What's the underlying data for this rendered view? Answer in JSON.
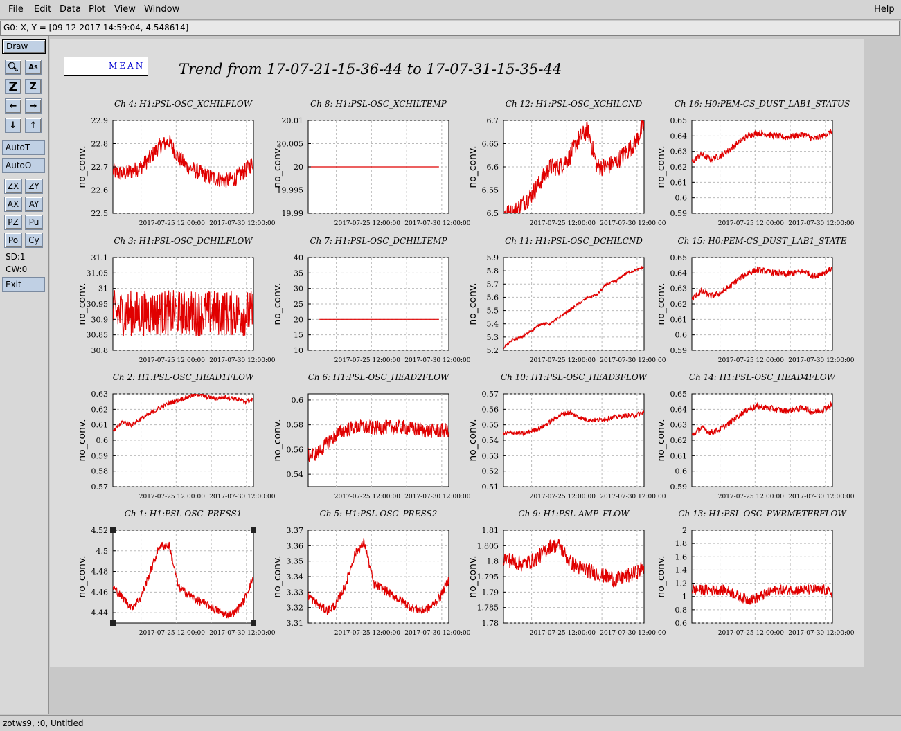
{
  "menubar": {
    "items": [
      "File",
      "Edit",
      "Data",
      "Plot",
      "View",
      "Window"
    ],
    "help": "Help"
  },
  "coord_readout": "G0: X, Y = [09-12-2017 14:59:04, 4.548614]",
  "toolbar": {
    "draw": "Draw",
    "autot": "AutoT",
    "autoo": "AutoO",
    "pairs": [
      [
        "ZX",
        "ZY"
      ],
      [
        "AX",
        "AY"
      ],
      [
        "PZ",
        "Pu"
      ],
      [
        "Po",
        "Cy"
      ]
    ],
    "sd": "SD:1",
    "cw": "CW:0",
    "exit": "Exit",
    "icons": [
      "zoom-icon",
      "text-scale-icon",
      "zoom-z-icon",
      "z-icon",
      "left-arrow-icon",
      "right-arrow-icon",
      "down-arrow-icon",
      "up-arrow-icon"
    ]
  },
  "legend": {
    "label": "MEAN",
    "color": "#e00000"
  },
  "title": "Trend from 17-07-21-15-36-44 to 17-07-31-15-35-44",
  "statusbar": "zotws9, :0, Untitled",
  "chart_data": [
    {
      "type": "line",
      "title": "Ch 4: H1:PSL-OSC_XCHILFLOW",
      "ylabel": "no_conv.",
      "yticks": [
        "22.9",
        "22.8",
        "22.7",
        "22.6",
        "22.5"
      ],
      "ylim": [
        22.5,
        22.9
      ],
      "xticks": [
        "2017-07-25 12:00:00",
        "2017-07-30 12:00:00"
      ],
      "profile": [
        22.68,
        22.67,
        22.68,
        22.7,
        22.74,
        22.79,
        22.81,
        22.74,
        22.7,
        22.68,
        22.66,
        22.65,
        22.64,
        22.65,
        22.68,
        22.72
      ],
      "noise": 0.035
    },
    {
      "type": "line",
      "title": "Ch 8: H1:PSL-OSC_XCHILTEMP",
      "ylabel": "no_conv.",
      "yticks": [
        "20.01",
        "20.005",
        "20",
        "19.995",
        "19.99"
      ],
      "ylim": [
        19.99,
        20.01
      ],
      "xticks": [
        "2017-07-25 12:00:00",
        "2017-07-30 12:00:00"
      ],
      "profile": [
        20,
        20,
        20,
        20,
        20,
        20,
        20,
        20,
        20,
        20,
        20,
        20,
        20,
        20,
        20,
        20
      ],
      "noise": 0
    },
    {
      "type": "line",
      "title": "Ch 12: H1:PSL-OSC_XCHILCND",
      "ylabel": "no_conv.",
      "yticks": [
        "6.7",
        "6.65",
        "6.6",
        "6.55",
        "6.5"
      ],
      "ylim": [
        6.5,
        6.7
      ],
      "xticks": [
        "2017-07-25 12:00:00",
        "2017-07-30 12:00:00"
      ],
      "profile": [
        6.5,
        6.5,
        6.52,
        6.54,
        6.57,
        6.6,
        6.6,
        6.62,
        6.66,
        6.68,
        6.6,
        6.6,
        6.61,
        6.63,
        6.65,
        6.69
      ],
      "noise": 0.02
    },
    {
      "type": "line",
      "title": "Ch 16: H0:PEM-CS_DUST_LAB1_STATUS",
      "ylabel": "no_conv.",
      "yticks": [
        "0.65",
        "0.64",
        "0.63",
        "0.62",
        "0.61",
        "0.6",
        "0.59"
      ],
      "ylim": [
        0.59,
        0.65
      ],
      "xticks": [
        "2017-07-25 12:00:00",
        "2017-07-30 12:00:00"
      ],
      "profile": [
        0.623,
        0.628,
        0.625,
        0.627,
        0.631,
        0.636,
        0.64,
        0.642,
        0.641,
        0.64,
        0.639,
        0.64,
        0.641,
        0.638,
        0.64,
        0.643
      ],
      "noise": 0.002
    },
    {
      "type": "line",
      "title": "Ch 3: H1:PSL-OSC_DCHILFLOW",
      "ylabel": "no_conv.",
      "yticks": [
        "31.1",
        "31.05",
        "31",
        "30.95",
        "30.9",
        "30.85",
        "30.8"
      ],
      "ylim": [
        30.8,
        31.1
      ],
      "xticks": [
        "2017-07-25 12:00:00",
        "2017-07-30 12:00:00"
      ],
      "profile": [
        30.92,
        30.92,
        30.92,
        30.92,
        30.92,
        30.92,
        30.92,
        30.92,
        30.92,
        30.92,
        30.92,
        30.92,
        30.92,
        30.92,
        30.92,
        30.92
      ],
      "noise": 0.075
    },
    {
      "type": "line",
      "title": "Ch 7: H1:PSL-OSC_DCHILTEMP",
      "ylabel": "no_conv.",
      "yticks": [
        "40",
        "35",
        "30",
        "25",
        "20",
        "15",
        "10"
      ],
      "ylim": [
        10,
        40
      ],
      "xticks": [
        "2017-07-25 12:00:00",
        "2017-07-30 12:00:00"
      ],
      "profile": [
        20,
        20,
        20,
        20,
        20,
        20,
        20,
        20,
        20,
        20,
        20,
        20,
        20,
        20,
        20,
        20
      ],
      "noise": 0
    },
    {
      "type": "line",
      "title": "Ch 11: H1:PSL-OSC_DCHILCND",
      "ylabel": "no_conv.",
      "yticks": [
        "5.9",
        "5.8",
        "5.7",
        "5.6",
        "5.5",
        "5.4",
        "5.3",
        "5.2"
      ],
      "ylim": [
        5.2,
        5.9
      ],
      "xticks": [
        "2017-07-25 12:00:00",
        "2017-07-30 12:00:00"
      ],
      "profile": [
        5.22,
        5.28,
        5.3,
        5.35,
        5.4,
        5.4,
        5.45,
        5.5,
        5.55,
        5.6,
        5.62,
        5.7,
        5.72,
        5.78,
        5.8,
        5.83
      ],
      "noise": 0.01
    },
    {
      "type": "line",
      "title": "Ch 15: H0:PEM-CS_DUST_LAB1_STATE",
      "ylabel": "no_conv.",
      "yticks": [
        "0.65",
        "0.64",
        "0.63",
        "0.62",
        "0.61",
        "0.6",
        "0.59"
      ],
      "ylim": [
        0.59,
        0.65
      ],
      "xticks": [
        "2017-07-25 12:00:00",
        "2017-07-30 12:00:00"
      ],
      "profile": [
        0.623,
        0.628,
        0.625,
        0.627,
        0.631,
        0.636,
        0.64,
        0.642,
        0.641,
        0.64,
        0.639,
        0.64,
        0.641,
        0.638,
        0.64,
        0.643
      ],
      "noise": 0.002
    },
    {
      "type": "line",
      "title": "Ch 2: H1:PSL-OSC_HEAD1FLOW",
      "ylabel": "no_conv.",
      "yticks": [
        "0.63",
        "0.62",
        "0.61",
        "0.6",
        "0.59",
        "0.58",
        "0.57"
      ],
      "ylim": [
        0.57,
        0.63
      ],
      "xticks": [
        "2017-07-25 12:00:00",
        "2017-07-30 12:00:00"
      ],
      "profile": [
        0.605,
        0.612,
        0.61,
        0.614,
        0.617,
        0.621,
        0.624,
        0.626,
        0.628,
        0.63,
        0.628,
        0.627,
        0.628,
        0.627,
        0.625,
        0.626
      ],
      "noise": 0.0015
    },
    {
      "type": "line",
      "title": "Ch 6: H1:PSL-OSC_HEAD2FLOW",
      "ylabel": "no_conv.",
      "yticks": [
        "0.6",
        "0.58",
        "0.56",
        "0.54"
      ],
      "ylim": [
        0.53,
        0.605
      ],
      "xticks": [
        "2017-07-25 12:00:00",
        "2017-07-30 12:00:00"
      ],
      "profile": [
        0.555,
        0.557,
        0.565,
        0.572,
        0.576,
        0.578,
        0.578,
        0.577,
        0.578,
        0.578,
        0.578,
        0.577,
        0.576,
        0.575,
        0.575,
        0.576
      ],
      "noise": 0.006
    },
    {
      "type": "line",
      "title": "Ch 10: H1:PSL-OSC_HEAD3FLOW",
      "ylabel": "no_conv.",
      "yticks": [
        "0.57",
        "0.56",
        "0.55",
        "0.54",
        "0.53",
        "0.52",
        "0.51"
      ],
      "ylim": [
        0.51,
        0.57
      ],
      "xticks": [
        "2017-07-25 12:00:00",
        "2017-07-30 12:00:00"
      ],
      "profile": [
        0.544,
        0.545,
        0.544,
        0.546,
        0.548,
        0.552,
        0.556,
        0.558,
        0.555,
        0.553,
        0.553,
        0.554,
        0.555,
        0.556,
        0.556,
        0.558
      ],
      "noise": 0.0015
    },
    {
      "type": "line",
      "title": "Ch 14: H1:PSL-OSC_HEAD4FLOW",
      "ylabel": "no_conv.",
      "yticks": [
        "0.65",
        "0.64",
        "0.63",
        "0.62",
        "0.61",
        "0.6",
        "0.59"
      ],
      "ylim": [
        0.59,
        0.65
      ],
      "xticks": [
        "2017-07-25 12:00:00",
        "2017-07-30 12:00:00"
      ],
      "profile": [
        0.623,
        0.628,
        0.625,
        0.627,
        0.631,
        0.636,
        0.64,
        0.642,
        0.641,
        0.64,
        0.639,
        0.64,
        0.641,
        0.638,
        0.64,
        0.643
      ],
      "noise": 0.002
    },
    {
      "type": "line",
      "title": "Ch 1: H1:PSL-OSC_PRESS1",
      "ylabel": "no_conv.",
      "yticks": [
        "4.52",
        "4.5",
        "4.48",
        "4.46",
        "4.44"
      ],
      "ylim": [
        4.43,
        4.52
      ],
      "xticks": [
        "2017-07-25 12:00:00",
        "2017-07-30 12:00:00"
      ],
      "profile": [
        4.465,
        4.455,
        4.445,
        4.455,
        4.48,
        4.505,
        4.505,
        4.465,
        4.458,
        4.452,
        4.448,
        4.443,
        4.438,
        4.44,
        4.452,
        4.475
      ],
      "noise": 0.004
    },
    {
      "type": "line",
      "title": "Ch 5: H1:PSL-OSC_PRESS2",
      "ylabel": "no_conv.",
      "yticks": [
        "3.37",
        "3.36",
        "3.35",
        "3.34",
        "3.33",
        "3.32",
        "3.31"
      ],
      "ylim": [
        3.31,
        3.37
      ],
      "xticks": [
        "2017-07-25 12:00:00",
        "2017-07-30 12:00:00"
      ],
      "profile": [
        3.328,
        3.322,
        3.318,
        3.322,
        3.335,
        3.355,
        3.362,
        3.335,
        3.332,
        3.328,
        3.324,
        3.32,
        3.318,
        3.32,
        3.326,
        3.338
      ],
      "noise": 0.003
    },
    {
      "type": "line",
      "title": "Ch 9: H1:PSL-AMP_FLOW",
      "ylabel": "no_conv.",
      "yticks": [
        "1.81",
        "1.805",
        "1.8",
        "1.795",
        "1.79",
        "1.785",
        "1.78"
      ],
      "ylim": [
        1.78,
        1.81
      ],
      "xticks": [
        "2017-07-25 12:00:00",
        "2017-07-30 12:00:00"
      ],
      "profile": [
        1.801,
        1.8,
        1.799,
        1.8,
        1.802,
        1.805,
        1.805,
        1.8,
        1.798,
        1.797,
        1.796,
        1.795,
        1.794,
        1.795,
        1.796,
        1.798
      ],
      "noise": 0.0025
    },
    {
      "type": "line",
      "title": "Ch 13: H1:PSL-OSC_PWRMETERFLOW",
      "ylabel": "no_conv.",
      "yticks": [
        "2",
        "1.8",
        "1.6",
        "1.4",
        "1.2",
        "1",
        "0.8",
        "0.6"
      ],
      "ylim": [
        0.6,
        2
      ],
      "xticks": [
        "2017-07-25 12:00:00",
        "2017-07-30 12:00:00"
      ],
      "profile": [
        1.1,
        1.1,
        1.1,
        1.1,
        1.08,
        1.0,
        0.95,
        0.98,
        1.05,
        1.1,
        1.1,
        1.1,
        1.1,
        1.1,
        1.1,
        1.05
      ],
      "noise": 0.08
    }
  ]
}
